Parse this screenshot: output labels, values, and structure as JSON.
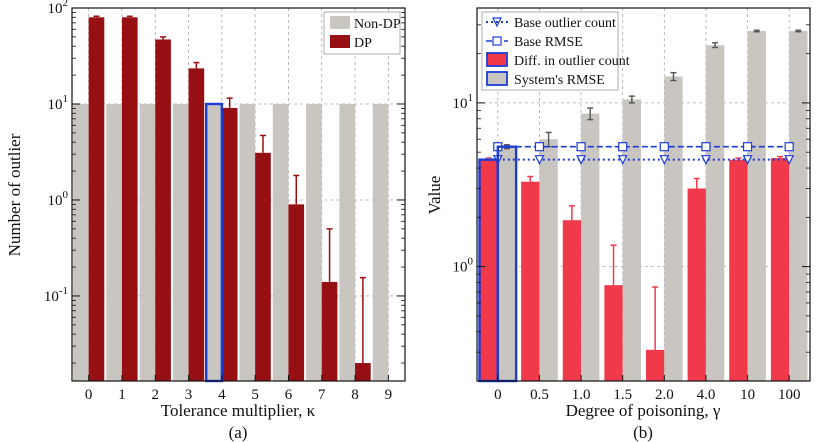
{
  "chart_data": [
    {
      "type": "bar",
      "panel_label": "(a)",
      "xlabel": "Tolerance multiplier, κ",
      "ylabel": "Number of outlier",
      "yscale": "log",
      "ylim": [
        0.013,
        100
      ],
      "categories": [
        "0",
        "1",
        "2",
        "3",
        "4",
        "5",
        "6",
        "7",
        "8",
        "9"
      ],
      "series": [
        {
          "name": "Non-DP",
          "color": "#c9c5c0",
          "values": [
            10,
            10,
            10,
            10,
            10,
            10,
            10,
            10,
            10,
            10
          ]
        },
        {
          "name": "DP",
          "color": "#960f12",
          "values": [
            80,
            80,
            47,
            23.5,
            9.1,
            3.1,
            0.9,
            0.14,
            0.02,
            null
          ],
          "err_upper": [
            82,
            82,
            50,
            27,
            11.5,
            4.7,
            1.8,
            0.5,
            0.155,
            null
          ]
        }
      ],
      "highlight": {
        "category": "4",
        "value": 10,
        "color": "#1c3cd6"
      },
      "legend": [
        "Non-DP",
        "DP"
      ],
      "legend_position": "top-right"
    },
    {
      "type": "bar",
      "panel_label": "(b)",
      "xlabel": "Degree of poisoning, γ",
      "ylabel": "Value",
      "yscale": "log",
      "ylim": [
        0.2,
        38
      ],
      "categories": [
        "0",
        "0.5",
        "1.0",
        "1.5",
        "2.0",
        "4.0",
        "10",
        "100"
      ],
      "series": [
        {
          "name": "Diff. in outlier count",
          "color": "#f0394a",
          "values": [
            4.5,
            3.3,
            1.92,
            0.77,
            0.31,
            3.0,
            4.5,
            4.6
          ],
          "err_upper": [
            4.6,
            3.55,
            2.35,
            1.35,
            0.75,
            3.45,
            4.6,
            4.7
          ]
        },
        {
          "name": "System's RMSE",
          "color": "#c9c5c0",
          "values": [
            5.4,
            6.0,
            8.6,
            10.5,
            14.5,
            22.5,
            27.5,
            27.5
          ],
          "err_upper": [
            5.55,
            6.6,
            9.3,
            11,
            15.3,
            23.3,
            27.8,
            27.8
          ],
          "err_lower": [
            5.25,
            5.4,
            7.9,
            10,
            13.7,
            21.8,
            27.2,
            27.2
          ]
        },
        {
          "name": "Base outlier count",
          "color": "#1c3cd6",
          "style": "dotted-triangle",
          "values": [
            4.5,
            4.5,
            4.5,
            4.5,
            4.5,
            4.5,
            4.5,
            4.5
          ]
        },
        {
          "name": "Base RMSE",
          "color": "#1c3cd6",
          "style": "dashed-square",
          "values": [
            5.4,
            5.4,
            5.4,
            5.4,
            5.4,
            5.4,
            5.4,
            5.4
          ]
        }
      ],
      "highlight": {
        "category": "0",
        "color": "#1c3cd6"
      },
      "legend": [
        "Base outlier count",
        "Base RMSE",
        "Diff. in outlier count",
        "System's RMSE"
      ],
      "legend_position": "top-left"
    }
  ]
}
